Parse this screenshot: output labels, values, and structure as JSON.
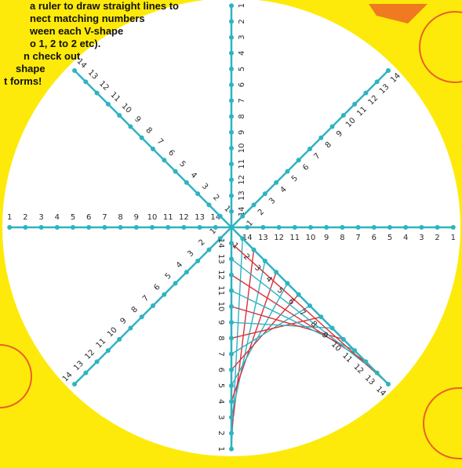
{
  "instructions": [
    "a ruler to draw straight lines to",
    "nect matching numbers",
    "ween each V-shape",
    "o 1, 2 to 2 etc).",
    "n check out",
    "shape",
    "t forms!"
  ],
  "numbers": [
    "1",
    "2",
    "3",
    "4",
    "5",
    "6",
    "7",
    "8",
    "9",
    "10",
    "11",
    "12",
    "13",
    "14"
  ]
}
